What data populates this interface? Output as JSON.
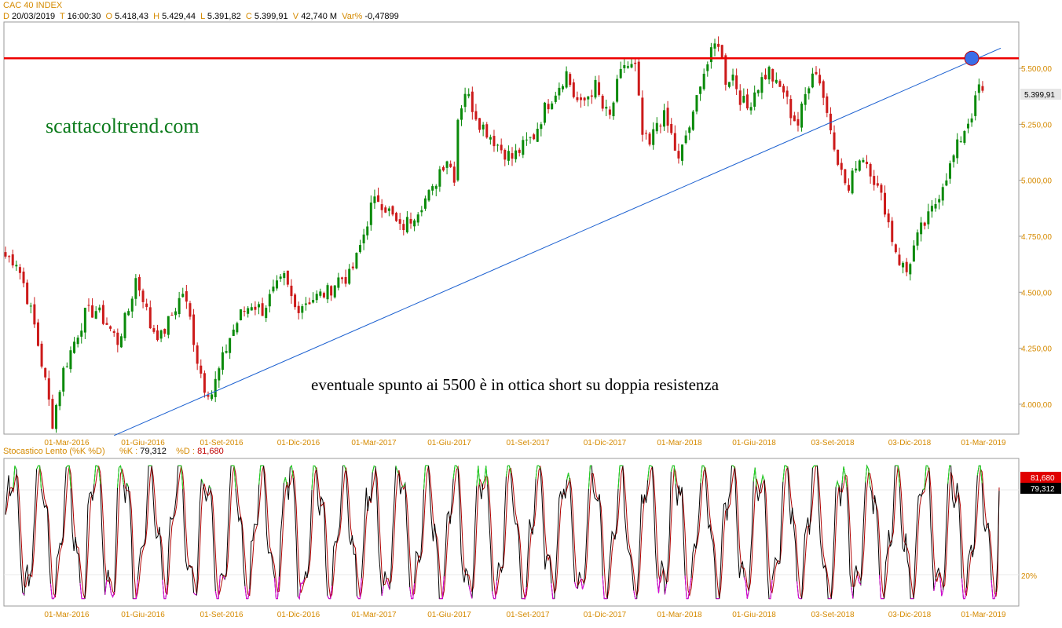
{
  "header": {
    "title": "CAC 40 INDEX",
    "date_label": "D",
    "date": "20/03/2019",
    "time_label": "T",
    "time": "16:00:30",
    "open_label": "O",
    "open": "5.418,43",
    "high_label": "H",
    "high": "5.429,44",
    "low_label": "L",
    "low": "5.391,82",
    "close_label": "C",
    "close": "5.399,91",
    "volume_label": "V",
    "volume": "42,740 M",
    "var_label": "Var%",
    "var": "-0,47899"
  },
  "watermark": "scattacoltrend.com",
  "annotation": "eventuale spunto ai 5500 è in ottica short su doppia resistenza",
  "colors": {
    "up": "#0a8a0a",
    "down": "#cc1a1a",
    "resistance": "#ee0000",
    "trendline": "#1a5fd0",
    "marker": "#3a6ee8",
    "k_line": "#000000",
    "d_line": "#b00000",
    "overbought": "#22dd22",
    "oversold": "#e000e0",
    "axis_text": "#d58a00"
  },
  "stochastic": {
    "title": "Stocastico Lento (%K %D)",
    "k_label": "%K :",
    "k_value": "79,312",
    "d_label": "%D :",
    "d_value": "81,680",
    "level_label": "20%",
    "badge_d": "81,680",
    "badge_k": "79,312"
  },
  "chart_data": [
    {
      "type": "candlestick",
      "title": "CAC 40 INDEX",
      "y_ticks": [
        "5.500,00",
        "5.250,00",
        "5.000,00",
        "4.750,00",
        "4.500,00",
        "4.250,00",
        "4.000,00"
      ],
      "y_tick_values": [
        5500,
        5250,
        5000,
        4750,
        4500,
        4250,
        4000
      ],
      "ylim": [
        3870,
        5700
      ],
      "x_ticks": [
        "01-Mar-2016",
        "01-Giu-2016",
        "01-Set-2016",
        "01-Dic-2016",
        "01-Mar-2017",
        "01-Giu-2017",
        "01-Set-2017",
        "01-Dic-2017",
        "01-Mar-2018",
        "01-Giu-2018",
        "03-Set-2018",
        "03-Dic-2018",
        "01-Mar-2019"
      ],
      "last_price_label": "5.399,91",
      "last_close": 5399.91,
      "close_path": [
        [
          0,
          4660
        ],
        [
          3,
          4640
        ],
        [
          5,
          4540
        ],
        [
          8,
          4350
        ],
        [
          11,
          4100
        ],
        [
          13,
          3920
        ],
        [
          16,
          4150
        ],
        [
          19,
          4280
        ],
        [
          22,
          4400
        ],
        [
          25,
          4420
        ],
        [
          28,
          4360
        ],
        [
          31,
          4280
        ],
        [
          34,
          4420
        ],
        [
          36,
          4560
        ],
        [
          38,
          4480
        ],
        [
          40,
          4350
        ],
        [
          43,
          4300
        ],
        [
          46,
          4400
        ],
        [
          49,
          4500
        ],
        [
          51,
          4380
        ],
        [
          53,
          4200
        ],
        [
          55,
          4080
        ],
        [
          57,
          4050
        ],
        [
          59,
          4150
        ],
        [
          62,
          4300
        ],
        [
          65,
          4400
        ],
        [
          68,
          4450
        ],
        [
          71,
          4420
        ],
        [
          74,
          4500
        ],
        [
          77,
          4560
        ],
        [
          80,
          4430
        ],
        [
          83,
          4460
        ],
        [
          86,
          4480
        ],
        [
          89,
          4500
        ],
        [
          92,
          4560
        ],
        [
          95,
          4570
        ],
        [
          97,
          4650
        ],
        [
          99,
          4760
        ],
        [
          101,
          4880
        ],
        [
          103,
          4920
        ],
        [
          106,
          4860
        ],
        [
          109,
          4780
        ],
        [
          112,
          4830
        ],
        [
          115,
          4900
        ],
        [
          118,
          4950
        ],
        [
          120,
          5050
        ],
        [
          122,
          5100
        ],
        [
          124,
          5020
        ],
        [
          125,
          5280
        ],
        [
          127,
          5400
        ],
        [
          129,
          5330
        ],
        [
          131,
          5260
        ],
        [
          134,
          5200
        ],
        [
          137,
          5140
        ],
        [
          140,
          5100
        ],
        [
          143,
          5150
        ],
        [
          146,
          5200
        ],
        [
          149,
          5320
        ],
        [
          152,
          5400
        ],
        [
          155,
          5480
        ],
        [
          157,
          5380
        ],
        [
          159,
          5330
        ],
        [
          161,
          5380
        ],
        [
          163,
          5420
        ],
        [
          165,
          5320
        ],
        [
          167,
          5280
        ],
        [
          169,
          5420
        ],
        [
          171,
          5520
        ],
        [
          172,
          5510
        ],
        [
          174,
          5500
        ],
        [
          176,
          5200
        ],
        [
          178,
          5150
        ],
        [
          180,
          5260
        ],
        [
          182,
          5280
        ],
        [
          184,
          5200
        ],
        [
          186,
          5080
        ],
        [
          188,
          5200
        ],
        [
          190,
          5280
        ],
        [
          192,
          5450
        ],
        [
          194,
          5520
        ],
        [
          196,
          5600
        ],
        [
          197,
          5620
        ],
        [
          199,
          5450
        ],
        [
          201,
          5470
        ],
        [
          203,
          5370
        ],
        [
          205,
          5320
        ],
        [
          207,
          5400
        ],
        [
          209,
          5450
        ],
        [
          211,
          5490
        ],
        [
          213,
          5420
        ],
        [
          215,
          5400
        ],
        [
          217,
          5300
        ],
        [
          219,
          5250
        ],
        [
          221,
          5380
        ],
        [
          223,
          5500
        ],
        [
          225,
          5450
        ],
        [
          227,
          5300
        ],
        [
          229,
          5170
        ],
        [
          231,
          5030
        ],
        [
          233,
          4950
        ],
        [
          235,
          5080
        ],
        [
          237,
          5110
        ],
        [
          239,
          5050
        ],
        [
          241,
          4960
        ],
        [
          243,
          4880
        ],
        [
          245,
          4740
        ],
        [
          247,
          4640
        ],
        [
          249,
          4590
        ],
        [
          251,
          4700
        ],
        [
          253,
          4780
        ],
        [
          255,
          4830
        ],
        [
          257,
          4900
        ],
        [
          259,
          4990
        ],
        [
          261,
          5060
        ],
        [
          263,
          5150
        ],
        [
          265,
          5230
        ],
        [
          267,
          5300
        ],
        [
          268,
          5350
        ],
        [
          269,
          5420
        ],
        [
          270,
          5400
        ]
      ],
      "horizontal_lines": [
        {
          "name": "resistance",
          "value": 5545
        }
      ],
      "trendlines": [
        {
          "from": [
            30,
            3860
          ],
          "to": [
            275,
            5590
          ]
        }
      ],
      "markers": [
        {
          "name": "touch-point",
          "x": 267,
          "value": 5545
        }
      ]
    },
    {
      "type": "line",
      "title": "Stocastico Lento (%K %D)",
      "ylim": [
        0,
        100
      ],
      "levels": [
        20,
        80
      ],
      "series": [
        {
          "name": "%K",
          "last": 79.312
        },
        {
          "name": "%D",
          "last": 81.68
        }
      ],
      "k_cycle_count": 36
    }
  ]
}
